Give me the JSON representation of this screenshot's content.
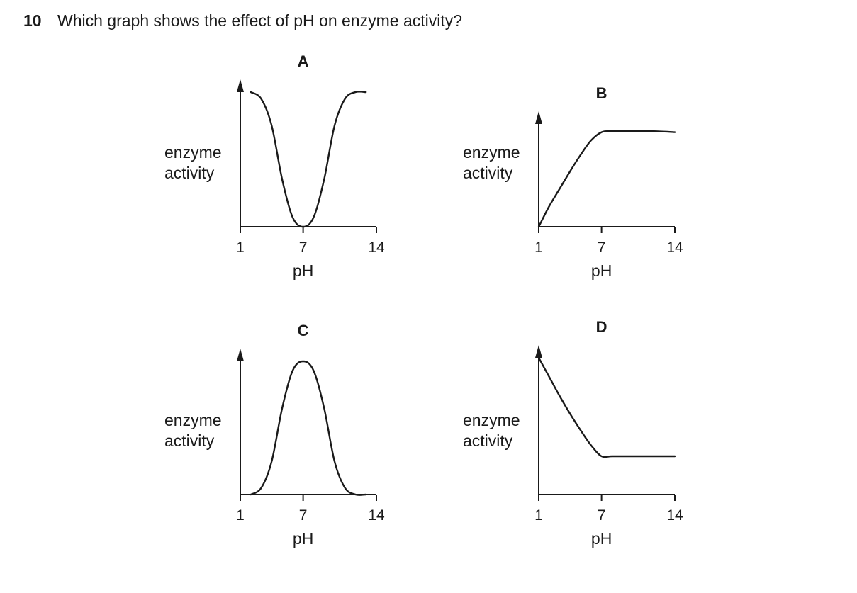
{
  "question": {
    "number": "10",
    "text": "Which graph shows the effect of pH on enzyme activity?"
  },
  "chart_data": [
    {
      "type": "line",
      "label": "A",
      "ylabel": [
        "enzyme",
        "activity"
      ],
      "xlabel": "pH",
      "xticks": [
        1,
        7,
        14
      ],
      "xlim": [
        1,
        14
      ],
      "ylim": [
        0,
        1
      ],
      "series": [
        {
          "x": [
            2,
            3,
            4,
            5,
            6,
            7,
            8,
            9,
            10,
            11,
            12,
            13
          ],
          "y": [
            1.0,
            0.95,
            0.75,
            0.35,
            0.07,
            0.0,
            0.07,
            0.35,
            0.75,
            0.95,
            1.0,
            1.0
          ]
        }
      ]
    },
    {
      "type": "line",
      "label": "B",
      "ylabel": [
        "enzyme",
        "activity"
      ],
      "xlabel": "pH",
      "xticks": [
        1,
        7,
        14
      ],
      "xlim": [
        1,
        14
      ],
      "ylim": [
        0,
        1
      ],
      "series": [
        {
          "x": [
            1,
            2,
            3,
            4,
            5,
            6,
            7,
            8,
            10,
            12,
            14
          ],
          "y": [
            0.0,
            0.2,
            0.37,
            0.54,
            0.7,
            0.84,
            0.92,
            0.93,
            0.93,
            0.93,
            0.92
          ]
        }
      ]
    },
    {
      "type": "line",
      "label": "C",
      "ylabel": [
        "enzyme",
        "activity"
      ],
      "xlabel": "pH",
      "xticks": [
        1,
        7,
        14
      ],
      "xlim": [
        1,
        14
      ],
      "ylim": [
        0,
        1
      ],
      "series": [
        {
          "x": [
            2,
            3,
            4,
            5,
            6,
            7,
            8,
            9,
            10,
            11,
            12,
            13
          ],
          "y": [
            0.0,
            0.05,
            0.25,
            0.65,
            0.93,
            1.0,
            0.93,
            0.65,
            0.25,
            0.05,
            0.0,
            0.0
          ]
        }
      ]
    },
    {
      "type": "line",
      "label": "D",
      "ylabel": [
        "enzyme",
        "activity"
      ],
      "xlabel": "pH",
      "xticks": [
        1,
        7,
        14
      ],
      "xlim": [
        1,
        14
      ],
      "ylim": [
        0,
        1
      ],
      "series": [
        {
          "x": [
            1,
            2,
            3,
            4,
            5,
            6,
            7,
            8,
            10,
            12,
            14
          ],
          "y": [
            1.0,
            0.86,
            0.72,
            0.59,
            0.47,
            0.36,
            0.28,
            0.28,
            0.28,
            0.28,
            0.28
          ]
        }
      ]
    }
  ]
}
